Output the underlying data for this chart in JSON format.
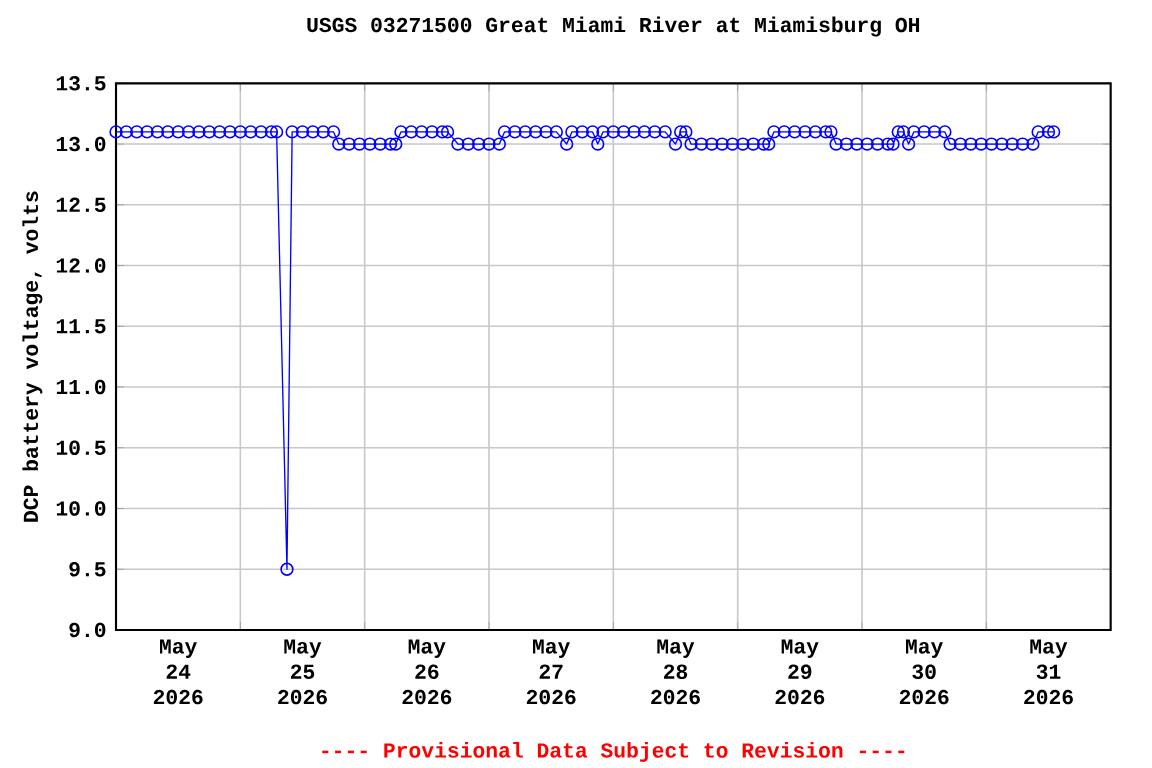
{
  "chart_data": {
    "type": "line",
    "title": "USGS 03271500 Great Miami River at Miamisburg OH",
    "ylabel": "DCP battery voltage, volts",
    "annotations": [
      "---- Provisional Data Subject to Revision ----"
    ],
    "xlim": [
      "2026-05-24T00:00",
      "2026-06-01T00:00"
    ],
    "xticks": [
      {
        "value": "2026-05-24T12:00",
        "label": "May 24 2026"
      },
      {
        "value": "2026-05-25T12:00",
        "label": "May 25 2026"
      },
      {
        "value": "2026-05-26T12:00",
        "label": "May 26 2026"
      },
      {
        "value": "2026-05-27T12:00",
        "label": "May 27 2026"
      },
      {
        "value": "2026-05-28T12:00",
        "label": "May 28 2026"
      },
      {
        "value": "2026-05-29T12:00",
        "label": "May 29 2026"
      },
      {
        "value": "2026-05-30T12:00",
        "label": "May 30 2026"
      },
      {
        "value": "2026-05-31T12:00",
        "label": "May 31 2026"
      },
      {
        "value": "2026-05-25T00:00",
        "label": null
      },
      {
        "value": "2026-05-26T00:00",
        "label": null
      },
      {
        "value": "2026-05-27T00:00",
        "label": null
      },
      {
        "value": "2026-05-28T00:00",
        "label": null
      },
      {
        "value": "2026-05-29T00:00",
        "label": null
      },
      {
        "value": "2026-05-30T00:00",
        "label": null
      },
      {
        "value": "2026-05-31T00:00",
        "label": null
      }
    ],
    "ylim": [
      9.0,
      13.5
    ],
    "yticks": [
      {
        "value": 9,
        "label": "9.0"
      },
      9.5,
      {
        "value": 10,
        "label": "10.0"
      },
      10.5,
      {
        "value": 11,
        "label": "11.0"
      },
      11.5,
      {
        "value": 12,
        "label": "12.0"
      },
      12.5,
      {
        "value": 13,
        "label": "13.0"
      },
      13.5
    ],
    "grid": true,
    "marker": "circle",
    "line_style": "solid",
    "series": [
      {
        "color": "#0000ff",
        "x": [
          "2026-05-24T00:00",
          "2026-05-24T02:00",
          "2026-05-24T04:00",
          "2026-05-24T06:00",
          "2026-05-24T08:00",
          "2026-05-24T10:00",
          "2026-05-24T12:00",
          "2026-05-24T14:00",
          "2026-05-24T16:00",
          "2026-05-24T18:00",
          "2026-05-24T20:00",
          "2026-05-24T22:00",
          "2026-05-25T00:00",
          "2026-05-25T02:00",
          "2026-05-25T04:00",
          "2026-05-25T06:00",
          "2026-05-25T07:00",
          "2026-05-25T09:00",
          "2026-05-25T10:00",
          "2026-05-25T12:00",
          "2026-05-25T14:00",
          "2026-05-25T16:00",
          "2026-05-25T18:00",
          "2026-05-25T19:00",
          "2026-05-25T21:00",
          "2026-05-25T23:00",
          "2026-05-26T01:00",
          "2026-05-26T03:00",
          "2026-05-26T05:00",
          "2026-05-26T06:00",
          "2026-05-26T07:00",
          "2026-05-26T09:00",
          "2026-05-26T11:00",
          "2026-05-26T13:00",
          "2026-05-26T15:00",
          "2026-05-26T16:00",
          "2026-05-26T18:00",
          "2026-05-26T20:00",
          "2026-05-26T22:00",
          "2026-05-27T00:00",
          "2026-05-27T02:00",
          "2026-05-27T03:00",
          "2026-05-27T05:00",
          "2026-05-27T07:00",
          "2026-05-27T09:00",
          "2026-05-27T11:00",
          "2026-05-27T13:00",
          "2026-05-27T15:00",
          "2026-05-27T16:00",
          "2026-05-27T18:00",
          "2026-05-27T20:00",
          "2026-05-27T21:00",
          "2026-05-27T22:00",
          "2026-05-28T00:00",
          "2026-05-28T02:00",
          "2026-05-28T04:00",
          "2026-05-28T06:00",
          "2026-05-28T08:00",
          "2026-05-28T10:00",
          "2026-05-28T12:00",
          "2026-05-28T13:00",
          "2026-05-28T14:00",
          "2026-05-28T15:00",
          "2026-05-28T17:00",
          "2026-05-28T19:00",
          "2026-05-28T21:00",
          "2026-05-28T23:00",
          "2026-05-29T01:00",
          "2026-05-29T03:00",
          "2026-05-29T05:00",
          "2026-05-29T06:00",
          "2026-05-29T07:00",
          "2026-05-29T09:00",
          "2026-05-29T11:00",
          "2026-05-29T13:00",
          "2026-05-29T15:00",
          "2026-05-29T17:00",
          "2026-05-29T18:00",
          "2026-05-29T19:00",
          "2026-05-29T21:00",
          "2026-05-29T23:00",
          "2026-05-30T01:00",
          "2026-05-30T03:00",
          "2026-05-30T05:00",
          "2026-05-30T06:00",
          "2026-05-30T07:00",
          "2026-05-30T08:00",
          "2026-05-30T09:00",
          "2026-05-30T10:00",
          "2026-05-30T12:00",
          "2026-05-30T14:00",
          "2026-05-30T16:00",
          "2026-05-30T17:00",
          "2026-05-30T19:00",
          "2026-05-30T21:00",
          "2026-05-30T23:00",
          "2026-05-31T01:00",
          "2026-05-31T03:00",
          "2026-05-31T05:00",
          "2026-05-31T07:00",
          "2026-05-31T09:00",
          "2026-05-31T10:00",
          "2026-05-31T12:00",
          "2026-05-31T13:00"
        ],
        "values": [
          13.1,
          13.1,
          13.1,
          13.1,
          13.1,
          13.1,
          13.1,
          13.1,
          13.1,
          13.1,
          13.1,
          13.1,
          13.1,
          13.1,
          13.1,
          13.1,
          13.1,
          9.5,
          13.1,
          13.1,
          13.1,
          13.1,
          13.1,
          13.0,
          13.0,
          13.0,
          13.0,
          13.0,
          13.0,
          13.0,
          13.1,
          13.1,
          13.1,
          13.1,
          13.1,
          13.1,
          13.0,
          13.0,
          13.0,
          13.0,
          13.0,
          13.1,
          13.1,
          13.1,
          13.1,
          13.1,
          13.1,
          13.0,
          13.1,
          13.1,
          13.1,
          13.0,
          13.1,
          13.1,
          13.1,
          13.1,
          13.1,
          13.1,
          13.1,
          13.0,
          13.1,
          13.1,
          13.0,
          13.0,
          13.0,
          13.0,
          13.0,
          13.0,
          13.0,
          13.0,
          13.0,
          13.1,
          13.1,
          13.1,
          13.1,
          13.1,
          13.1,
          13.1,
          13.0,
          13.0,
          13.0,
          13.0,
          13.0,
          13.0,
          13.0,
          13.1,
          13.1,
          13.0,
          13.1,
          13.1,
          13.1,
          13.1,
          13.0,
          13.0,
          13.0,
          13.0,
          13.0,
          13.0,
          13.0,
          13.0,
          13.0,
          13.1,
          13.1,
          13.1
        ]
      }
    ]
  }
}
